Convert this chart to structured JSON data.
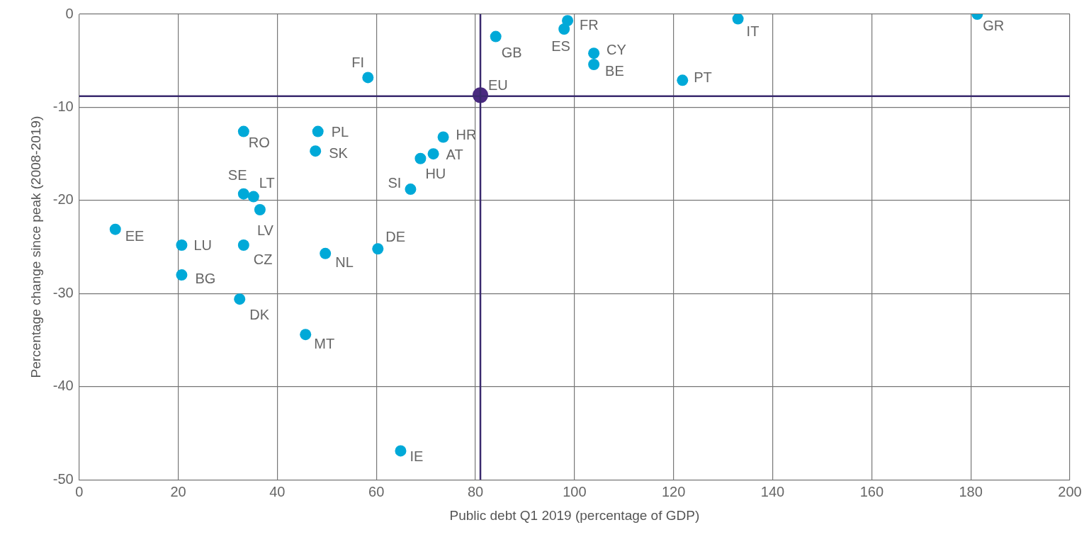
{
  "chart_data": {
    "type": "scatter",
    "xlabel": "Public debt Q1 2019 (percentage of GDP)",
    "ylabel": "Percentage change since peak (2008-2019)",
    "series": [
      {
        "color": "#00a9d8",
        "x": [
          7.3,
          20.7,
          20.7,
          33.2,
          35.2,
          36.5,
          33.2,
          32.4,
          33.2,
          48.2,
          47.7,
          45.7,
          49.7,
          60.3,
          58.3,
          66.9,
          64.9,
          68.9,
          71.5,
          73.5,
          84.1,
          97.9,
          98.6,
          103.9,
          103.9,
          121.8,
          133.0,
          181.3
        ],
        "values": [
          -23.1,
          -24.8,
          -28.0,
          -19.3,
          -19.6,
          -21.0,
          -24.8,
          -30.6,
          -12.6,
          -12.6,
          -14.7,
          -34.4,
          -25.7,
          -25.2,
          -6.8,
          -18.8,
          -46.9,
          -15.5,
          -15.0,
          -13.2,
          -2.4,
          -1.6,
          -0.7,
          -4.2,
          -5.4,
          -7.1,
          -0.5,
          0
        ]
      },
      {
        "color": "#4a2a80",
        "x": [
          81.0
        ],
        "values": [
          -8.7
        ]
      }
    ],
    "xlim": [
      0,
      200
    ],
    "xticks": [
      0,
      20,
      40,
      60,
      80,
      100,
      120,
      140,
      160,
      180,
      200
    ],
    "ylim": [
      -50,
      0
    ],
    "yticks": [
      -50,
      -40,
      -30,
      -20,
      -10,
      0
    ],
    "grid": true,
    "legend": false,
    "marker": "circle",
    "ref_lines": [
      {
        "axis": "x",
        "value": 81.0,
        "color": "#3a2a6e"
      },
      {
        "axis": "y",
        "value": -8.8,
        "color": "#3a2a6e"
      }
    ],
    "annotations": [
      {
        "text": "EE",
        "x": 7.3,
        "y": -23.1
      },
      {
        "text": "LU",
        "x": 20.7,
        "y": -24.8
      },
      {
        "text": "BG",
        "x": 20.7,
        "y": -28.0
      },
      {
        "text": "SE",
        "x": 33.2,
        "y": -19.3
      },
      {
        "text": "LT",
        "x": 35.2,
        "y": -19.6
      },
      {
        "text": "LV",
        "x": 36.5,
        "y": -21.0
      },
      {
        "text": "CZ",
        "x": 33.2,
        "y": -24.8
      },
      {
        "text": "DK",
        "x": 32.4,
        "y": -30.6
      },
      {
        "text": "RO",
        "x": 33.2,
        "y": -12.6
      },
      {
        "text": "PL",
        "x": 48.2,
        "y": -12.6
      },
      {
        "text": "SK",
        "x": 47.7,
        "y": -14.7
      },
      {
        "text": "MT",
        "x": 45.7,
        "y": -34.4
      },
      {
        "text": "NL",
        "x": 49.7,
        "y": -25.7
      },
      {
        "text": "DE",
        "x": 60.3,
        "y": -25.2
      },
      {
        "text": "FI",
        "x": 58.3,
        "y": -6.8
      },
      {
        "text": "SI",
        "x": 66.9,
        "y": -18.8
      },
      {
        "text": "IE",
        "x": 64.9,
        "y": -46.9
      },
      {
        "text": "HU",
        "x": 68.9,
        "y": -15.5
      },
      {
        "text": "AT",
        "x": 71.5,
        "y": -15.0
      },
      {
        "text": "HR",
        "x": 73.5,
        "y": -13.2
      },
      {
        "text": "EU",
        "x": 81.0,
        "y": -8.7
      },
      {
        "text": "GB",
        "x": 84.1,
        "y": -2.4
      },
      {
        "text": "ES",
        "x": 97.9,
        "y": -1.6
      },
      {
        "text": "FR",
        "x": 98.6,
        "y": -0.7
      },
      {
        "text": "CY",
        "x": 103.9,
        "y": -4.2
      },
      {
        "text": "BE",
        "x": 103.9,
        "y": -5.4
      },
      {
        "text": "PT",
        "x": 121.8,
        "y": -7.1
      },
      {
        "text": "IT",
        "x": 133.0,
        "y": -0.5
      },
      {
        "text": "GR",
        "x": 181.3,
        "y": 0
      }
    ]
  }
}
